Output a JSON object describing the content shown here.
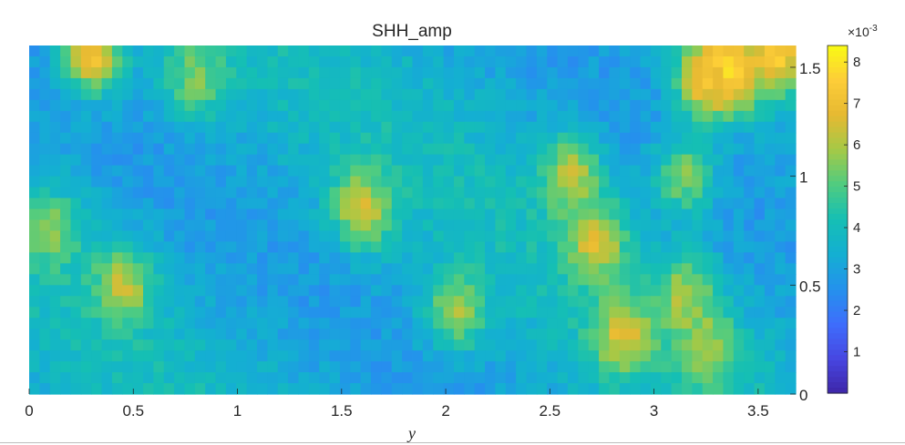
{
  "chart_data": {
    "type": "heatmap",
    "title": "SHH_amp",
    "xlabel": "y",
    "ylabel": "",
    "xlim": [
      0,
      3.68
    ],
    "ylim": [
      0,
      1.6
    ],
    "x_ticks": [
      0,
      0.5,
      1,
      1.5,
      2,
      2.5,
      3,
      3.5
    ],
    "x_tick_labels": [
      "0",
      "0.5",
      "1",
      "1.5",
      "2",
      "2.5",
      "3",
      "3.5"
    ],
    "y_ticks": [
      0,
      0.5,
      1,
      1.5
    ],
    "y_tick_labels": [
      "0",
      "0.5",
      "1",
      "1.5"
    ],
    "y_axis_location": "right",
    "colormap": "parula",
    "colorbar": {
      "location": "right",
      "multiplier_label": "×10",
      "multiplier_exponent": "-3",
      "ticks": [
        1,
        2,
        3,
        4,
        5,
        6,
        7,
        8
      ],
      "tick_labels": [
        "1",
        "2",
        "3",
        "4",
        "5",
        "6",
        "7",
        "8"
      ],
      "clim": [
        0,
        8.4
      ]
    },
    "grid": false,
    "grid_cols": 74,
    "grid_rows": 32,
    "value_unit_scale": "1e-3",
    "features": [
      {
        "x": 0.3,
        "y": 1.55,
        "value": 7.0
      },
      {
        "x": 0.8,
        "y": 1.45,
        "value": 5.6
      },
      {
        "x": 0.45,
        "y": 0.5,
        "value": 6.2
      },
      {
        "x": 0.1,
        "y": 0.75,
        "value": 5.6
      },
      {
        "x": 1.6,
        "y": 0.85,
        "value": 6.5
      },
      {
        "x": 2.05,
        "y": 0.38,
        "value": 5.8
      },
      {
        "x": 2.6,
        "y": 1.0,
        "value": 6.2
      },
      {
        "x": 2.72,
        "y": 0.7,
        "value": 6.6
      },
      {
        "x": 2.85,
        "y": 0.27,
        "value": 6.7
      },
      {
        "x": 3.15,
        "y": 0.45,
        "value": 6.0
      },
      {
        "x": 3.25,
        "y": 0.22,
        "value": 6.0
      },
      {
        "x": 3.15,
        "y": 1.0,
        "value": 5.5
      },
      {
        "x": 3.37,
        "y": 1.48,
        "value": 8.4
      },
      {
        "x": 3.25,
        "y": 1.45,
        "value": 7.2
      },
      {
        "x": 3.6,
        "y": 1.57,
        "value": 7.5
      }
    ]
  }
}
